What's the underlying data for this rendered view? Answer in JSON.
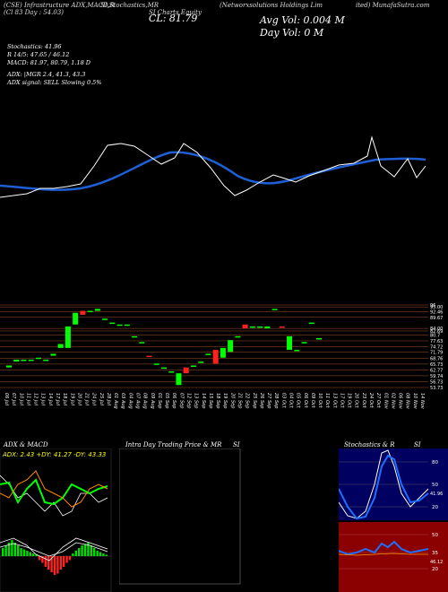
{
  "header": {
    "top_left": "(CSE) Infrastructure ADX,MACD,R",
    "top_left2": "(Cl 83 Day : 54.03)",
    "top_mid": "SI,Stochastics,MR",
    "top_mid2": "SI Charts Equity",
    "top_right": "(Networxsolutions Holdings Lim",
    "top_right2": "ited) MunafaSutra.com",
    "close_label": "CL: 81.79",
    "avg_vol": "Avg Vol: 0.004  M",
    "day_vol": "Day Vol: 0  M"
  },
  "indicators": {
    "line1": "Stochastics: 41.96",
    "line2": "R  14/5: 47.65 / 46.12",
    "line3": "MACD: 81.97, 80.79, 1.18  D",
    "line4": "ADX:                |MGR 2.4, 41.3, 43.3",
    "line5": "ADX  signal: SELL  Slowing 0.5%"
  },
  "price_labels": [
    "96",
    "95.00",
    "92.46",
    "89.67",
    "84.00",
    "82.69",
    "80.7",
    "77.63",
    "74.72",
    "71.79",
    "68.76",
    "65.73",
    "62.77",
    "59.74",
    "56.73",
    "53.73"
  ],
  "date_labels": [
    "06 Jul",
    "07 Jul",
    "10 Jul",
    "11 Jul",
    "12 Jul",
    "13 Jul",
    "14 Jul",
    "17 Jul",
    "18 Jul",
    "19 Jul",
    "20 Jul",
    "21 Jul",
    "24 Jul",
    "25 Jul",
    "28 Jul",
    "01 Aug",
    "03 Aug",
    "04 Aug",
    "07 Aug",
    "08 Aug",
    "09 Aug",
    "01 Sep",
    "05 Sep",
    "06 Sep",
    "07 Sep",
    "12 Sep",
    "13 Sep",
    "14 Sep",
    "15 Sep",
    "18 Sep",
    "19 Sep",
    "20 Sep",
    "21 Sep",
    "22 Sep",
    "25 Sep",
    "26 Sep",
    "27 Sep",
    "28 Sep",
    "03 Oct",
    "04 Oct",
    "05 Oct",
    "06 Oct",
    "09 Oct",
    "10 Oct",
    "11 Oct",
    "13 Oct",
    "17 Oct",
    "19 Oct",
    "20 Oct",
    "23 Oct",
    "24 Oct",
    "27 Oct",
    "01 Nov",
    "02 Nov",
    "06 Nov",
    "08 Nov",
    "10 Nov",
    "14 Nov"
  ],
  "panels": {
    "adx_title": "ADX  & MACD",
    "adx_values": "ADX: 2.43  +DY: 41.27  -DY: 43.33",
    "intra_title": "Intra  Day Trading Price  & MR",
    "intra_title2": "SI",
    "stoch_title": "Stochastics & R",
    "stoch_title2": "SI",
    "stoch_ticks": [
      "80",
      "50",
      "20"
    ],
    "stoch_value": "41.96",
    "rsi_ticks": [
      "50",
      "35",
      "20"
    ],
    "rsi_value": "46.12"
  },
  "chart_data": {
    "type": "candlestick",
    "price_axis_ticks": [
      96,
      95.0,
      92.46,
      89.67,
      84.0,
      82.69,
      80.7,
      77.63,
      74.72,
      71.79,
      68.76,
      65.73,
      62.77,
      59.74,
      56.73,
      53.73
    ],
    "candles": [
      {
        "o": 64,
        "c": 65,
        "color": "green"
      },
      {
        "o": 67,
        "c": 68,
        "color": "green"
      },
      {
        "o": 68,
        "c": 68,
        "color": "green"
      },
      {
        "o": 68,
        "c": 68,
        "color": "green"
      },
      {
        "o": 68.5,
        "c": 69,
        "color": "green"
      },
      {
        "o": 68,
        "c": 68,
        "color": "green"
      },
      {
        "o": 70,
        "c": 71,
        "color": "green"
      },
      {
        "o": 74,
        "c": 76,
        "color": "green"
      },
      {
        "o": 74,
        "c": 85,
        "color": "green"
      },
      {
        "o": 86,
        "c": 92,
        "color": "green"
      },
      {
        "o": 93,
        "c": 91,
        "color": "red"
      },
      {
        "o": 93,
        "c": 93,
        "color": "green"
      },
      {
        "o": 93,
        "c": 94,
        "color": "green"
      },
      {
        "o": 89,
        "c": 89,
        "color": "green"
      },
      {
        "o": 87,
        "c": 87,
        "color": "green"
      },
      {
        "o": 86,
        "c": 86,
        "color": "green"
      },
      {
        "o": 86,
        "c": 86,
        "color": "green"
      },
      {
        "o": 80,
        "c": 80,
        "color": "green"
      },
      {
        "o": 77,
        "c": 77,
        "color": "green"
      },
      {
        "o": 70,
        "c": 70,
        "color": "red"
      },
      {
        "o": 66,
        "c": 66,
        "color": "green"
      },
      {
        "o": 64,
        "c": 64,
        "color": "green"
      },
      {
        "o": 62,
        "c": 62,
        "color": "green"
      },
      {
        "o": 61,
        "c": 55,
        "color": "green"
      },
      {
        "o": 64,
        "c": 61,
        "color": "red"
      },
      {
        "o": 65,
        "c": 65,
        "color": "green"
      },
      {
        "o": 67,
        "c": 67,
        "color": "green"
      },
      {
        "o": 71,
        "c": 71,
        "color": "green"
      },
      {
        "o": 73,
        "c": 66,
        "color": "red"
      },
      {
        "o": 74,
        "c": 69,
        "color": "green"
      },
      {
        "o": 72,
        "c": 78,
        "color": "green"
      },
      {
        "o": 80,
        "c": 80,
        "color": "green"
      },
      {
        "o": 86,
        "c": 84,
        "color": "red"
      },
      {
        "o": 85,
        "c": 85,
        "color": "green"
      },
      {
        "o": 85,
        "c": 85,
        "color": "green"
      },
      {
        "o": 85,
        "c": 84,
        "color": "green"
      },
      {
        "o": 94,
        "c": 94,
        "color": "green"
      },
      {
        "o": 85,
        "c": 85,
        "color": "red"
      },
      {
        "o": 80,
        "c": 73,
        "color": "green"
      },
      {
        "o": 73,
        "c": 73,
        "color": "green"
      },
      {
        "o": 77,
        "c": 77,
        "color": "green"
      },
      {
        "o": 87,
        "c": 87,
        "color": "green"
      },
      {
        "o": 79,
        "c": 79,
        "color": "green"
      }
    ],
    "ma_line": {
      "color": "#ffffff"
    },
    "ma_curve": {
      "color": "#1f5fd6"
    }
  }
}
